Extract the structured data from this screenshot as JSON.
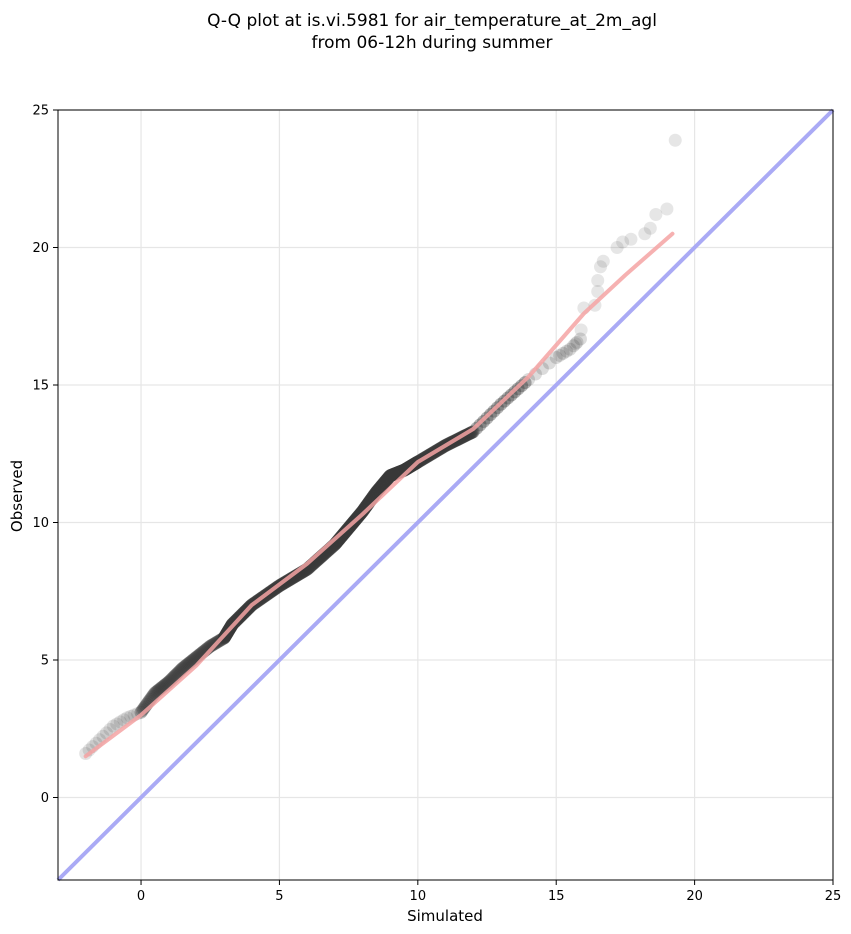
{
  "chart_data": {
    "type": "scatter",
    "title_lines": [
      "Q-Q plot at is.vi.5981 for air_temperature_at_2m_agl",
      "from 06-12h during summer"
    ],
    "xlabel": "Simulated",
    "ylabel": "Observed",
    "xlim": [
      -3,
      25
    ],
    "ylim": [
      -3,
      25
    ],
    "x_ticks": [
      0,
      5,
      10,
      15,
      20,
      25
    ],
    "y_ticks": [
      0,
      5,
      10,
      15,
      20,
      25
    ],
    "grid": true,
    "legend": "none",
    "reference_line": {
      "name": "1:1 line",
      "color": "#aaaaf5",
      "from": [
        -3,
        -3
      ],
      "to": [
        25,
        25
      ]
    },
    "fit_line": {
      "color": "#f5a3a3",
      "points": [
        [
          -2.0,
          1.5
        ],
        [
          0,
          3.0
        ],
        [
          2,
          4.8
        ],
        [
          4,
          7.0
        ],
        [
          6,
          8.5
        ],
        [
          8,
          10.3
        ],
        [
          10,
          12.2
        ],
        [
          12,
          13.4
        ],
        [
          14,
          15.3
        ],
        [
          16,
          17.6
        ],
        [
          17.5,
          19.0
        ],
        [
          19.2,
          20.5
        ]
      ]
    },
    "point_color": "#3a3a3a",
    "quantile_curve": [
      [
        -2.0,
        1.6
      ],
      [
        -1.5,
        2.1
      ],
      [
        -1.0,
        2.6
      ],
      [
        -0.5,
        2.9
      ],
      [
        0,
        3.1
      ],
      [
        0.5,
        3.8
      ],
      [
        1.0,
        4.2
      ],
      [
        1.5,
        4.7
      ],
      [
        2.0,
        5.1
      ],
      [
        2.5,
        5.5
      ],
      [
        3.0,
        5.8
      ],
      [
        3.3,
        6.3
      ],
      [
        4.0,
        7.0
      ],
      [
        5.0,
        7.7
      ],
      [
        6.0,
        8.3
      ],
      [
        7.0,
        9.2
      ],
      [
        7.5,
        9.8
      ],
      [
        8.0,
        10.4
      ],
      [
        8.5,
        11.1
      ],
      [
        9.0,
        11.7
      ],
      [
        9.5,
        11.9
      ],
      [
        10.0,
        12.2
      ],
      [
        11.0,
        12.8
      ],
      [
        12.0,
        13.3
      ],
      [
        13.0,
        14.3
      ],
      [
        14.0,
        15.2
      ],
      [
        15.0,
        16.0
      ],
      [
        15.5,
        16.3
      ],
      [
        16.0,
        16.8
      ]
    ],
    "tail_points": [
      [
        15.7,
        16.5
      ],
      [
        15.9,
        17.0
      ],
      [
        16.0,
        17.8
      ],
      [
        16.4,
        17.9
      ],
      [
        16.5,
        18.4
      ],
      [
        16.5,
        18.8
      ],
      [
        16.6,
        19.3
      ],
      [
        16.7,
        19.5
      ],
      [
        17.2,
        20.0
      ],
      [
        17.4,
        20.2
      ],
      [
        17.7,
        20.3
      ],
      [
        18.2,
        20.5
      ],
      [
        18.4,
        20.7
      ],
      [
        18.6,
        21.2
      ],
      [
        19.0,
        21.4
      ],
      [
        19.3,
        23.9
      ]
    ]
  }
}
